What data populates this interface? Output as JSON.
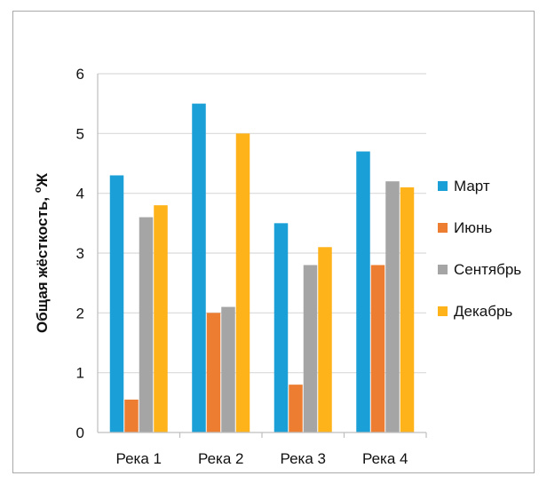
{
  "chart_data": {
    "type": "bar",
    "categories": [
      "Река 1",
      "Река 2",
      "Река 3",
      "Река 4"
    ],
    "series": [
      {
        "name": "Март",
        "color": "#1a9fd6",
        "values": [
          4.3,
          5.5,
          3.5,
          4.7
        ]
      },
      {
        "name": "Июнь",
        "color": "#ed7d31",
        "values": [
          0.55,
          2.0,
          0.8,
          2.8
        ]
      },
      {
        "name": "Сентябрь",
        "color": "#a5a5a5",
        "values": [
          3.6,
          2.1,
          2.8,
          4.2
        ]
      },
      {
        "name": "Декабрь",
        "color": "#ffb31a",
        "values": [
          3.8,
          5.0,
          3.1,
          4.1
        ]
      }
    ],
    "xlabel": "",
    "ylabel_main": "Общая жёсткость, ",
    "ylabel_sup": "о",
    "ylabel_unit": "Ж",
    "ylim": [
      0,
      6
    ],
    "yticks": [
      "0",
      "1",
      "2",
      "3",
      "4",
      "5",
      "6"
    ],
    "grid": true,
    "legend_position": "right"
  }
}
